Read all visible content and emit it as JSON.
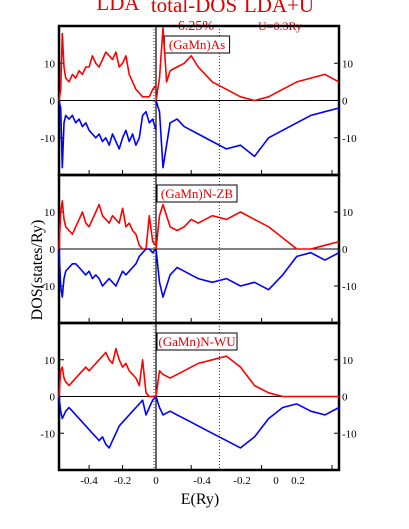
{
  "header": {
    "lda_label": "LDA",
    "center_label": "total-DOS",
    "concentration": "6.25%",
    "ldau_label": "LDA+U",
    "u_value": "U=0.3Ry"
  },
  "axes": {
    "xlabel": "E(Ry)",
    "ylabel": "DOS(states/Ry)"
  },
  "colors": {
    "spin_up": "#ff0000",
    "spin_down": "#0000ff",
    "label_text": "#e00000",
    "axes": "#000000"
  },
  "chart_data": {
    "type": "line",
    "layout": "3 rows x 2 columns (left: LDA, right: LDA+U)",
    "x_left": {
      "range": [
        -0.58,
        0.0
      ],
      "ticks": [
        -0.4,
        -0.2,
        0
      ],
      "tick_labels": [
        "-0.4",
        "-0.2",
        "0"
      ]
    },
    "x_right": {
      "range": [
        0.0,
        0.26
      ],
      "ticks": [
        0.0,
        0.2
      ],
      "tick_labels": [
        "0",
        "0.2"
      ]
    },
    "x_right_lower": {
      "ticks": [
        -0.4,
        -0.2,
        0,
        0.2
      ],
      "tick_labels": [
        "-0.4",
        "-0.2",
        "0",
        "0.2"
      ]
    },
    "ylim": [
      -20,
      20
    ],
    "yticks": [
      10,
      0,
      -10
    ],
    "ytick_labels": [
      "10",
      "0",
      "-10"
    ],
    "fermi_level": 0,
    "panels": [
      {
        "label": "(GaMn)As",
        "lda": {
          "up": {
            "x": [
              -0.58,
              -0.57,
              -0.56,
              -0.55,
              -0.54,
              -0.52,
              -0.5,
              -0.48,
              -0.46,
              -0.44,
              -0.42,
              -0.4,
              -0.38,
              -0.36,
              -0.34,
              -0.32,
              -0.3,
              -0.28,
              -0.26,
              -0.24,
              -0.22,
              -0.2,
              -0.18,
              -0.16,
              -0.14,
              -0.12,
              -0.1,
              -0.08,
              -0.06,
              -0.04,
              -0.02,
              0.0
            ],
            "y": [
              0,
              3,
              18,
              9,
              6,
              5,
              7,
              6,
              8,
              7,
              9,
              9,
              12,
              10,
              9,
              11,
              13,
              12,
              11,
              13,
              9,
              10,
              12,
              7,
              5,
              3,
              2,
              1,
              1,
              1,
              3,
              4
            ]
          },
          "down": {
            "x": [
              -0.58,
              -0.57,
              -0.56,
              -0.55,
              -0.54,
              -0.52,
              -0.5,
              -0.48,
              -0.46,
              -0.44,
              -0.42,
              -0.4,
              -0.38,
              -0.36,
              -0.34,
              -0.32,
              -0.3,
              -0.28,
              -0.26,
              -0.24,
              -0.22,
              -0.2,
              -0.18,
              -0.16,
              -0.14,
              -0.12,
              -0.1,
              -0.08,
              -0.06,
              -0.04,
              -0.02,
              0.0
            ],
            "y": [
              0,
              -2,
              -18,
              -6,
              -4,
              -5,
              -4,
              -6,
              -5,
              -7,
              -6,
              -8,
              -9,
              -10,
              -9,
              -11,
              -10,
              -12,
              -9,
              -11,
              -13,
              -10,
              -8,
              -11,
              -9,
              -12,
              -10,
              -4,
              -3,
              -6,
              -5,
              -8
            ]
          }
        },
        "ldau": {
          "up": {
            "x": [
              0.0,
              0.005,
              0.01,
              0.015,
              0.02,
              0.03,
              0.04,
              0.05,
              0.06,
              0.07,
              0.08,
              0.1,
              0.12,
              0.14,
              0.16,
              0.18,
              0.2,
              0.22,
              0.24,
              0.26
            ],
            "y": [
              0,
              6,
              20,
              5,
              8,
              9,
              10,
              12,
              9,
              7,
              5,
              3,
              1,
              0,
              1,
              3,
              5,
              6,
              7,
              5
            ]
          },
          "down": {
            "x": [
              0.0,
              0.005,
              0.01,
              0.02,
              0.03,
              0.04,
              0.05,
              0.06,
              0.08,
              0.1,
              0.12,
              0.14,
              0.16,
              0.18,
              0.2,
              0.22,
              0.24,
              0.26
            ],
            "y": [
              0,
              -3,
              -18,
              -6,
              -5,
              -7,
              -8,
              -9,
              -11,
              -13,
              -12,
              -15,
              -10,
              -8,
              -6,
              -4,
              -3,
              -2
            ]
          }
        }
      },
      {
        "label": "(GaMn)N-ZB",
        "lda": {
          "up": {
            "x": [
              -0.58,
              -0.57,
              -0.56,
              -0.55,
              -0.54,
              -0.52,
              -0.5,
              -0.48,
              -0.46,
              -0.44,
              -0.42,
              -0.4,
              -0.38,
              -0.36,
              -0.34,
              -0.32,
              -0.3,
              -0.28,
              -0.26,
              -0.24,
              -0.22,
              -0.2,
              -0.18,
              -0.16,
              -0.14,
              -0.12,
              -0.1,
              -0.08,
              -0.06,
              -0.04,
              -0.02,
              0.0
            ],
            "y": [
              0,
              10,
              13,
              8,
              6,
              5,
              4,
              6,
              8,
              10,
              7,
              6,
              8,
              10,
              12,
              9,
              8,
              7,
              9,
              8,
              7,
              11,
              6,
              7,
              5,
              4,
              1,
              0,
              0,
              9,
              2,
              1
            ]
          },
          "down": {
            "x": [
              -0.58,
              -0.57,
              -0.56,
              -0.55,
              -0.54,
              -0.52,
              -0.5,
              -0.48,
              -0.46,
              -0.44,
              -0.42,
              -0.4,
              -0.38,
              -0.36,
              -0.34,
              -0.32,
              -0.3,
              -0.28,
              -0.26,
              -0.24,
              -0.22,
              -0.2,
              -0.18,
              -0.16,
              -0.14,
              -0.12,
              -0.1,
              -0.08,
              -0.06,
              -0.04,
              -0.02,
              0.0
            ],
            "y": [
              0,
              -10,
              -13,
              -8,
              -6,
              -5,
              -4,
              -4,
              -5,
              -6,
              -7,
              -6,
              -8,
              -7,
              -8,
              -10,
              -9,
              -8,
              -9,
              -10,
              -8,
              -6,
              -7,
              -6,
              -5,
              -4,
              -2,
              -1,
              0,
              0,
              -1,
              0
            ]
          }
        },
        "ldau": {
          "up": {
            "x": [
              0.0,
              0.005,
              0.01,
              0.02,
              0.03,
              0.04,
              0.05,
              0.06,
              0.08,
              0.1,
              0.12,
              0.14,
              0.16,
              0.18,
              0.2,
              0.22,
              0.24,
              0.26
            ],
            "y": [
              0,
              9,
              12,
              6,
              5,
              6,
              8,
              7,
              9,
              8,
              10,
              8,
              6,
              3,
              0,
              0,
              1,
              2
            ]
          },
          "down": {
            "x": [
              0.0,
              0.005,
              0.01,
              0.02,
              0.03,
              0.04,
              0.05,
              0.06,
              0.08,
              0.1,
              0.12,
              0.14,
              0.16,
              0.18,
              0.2,
              0.22,
              0.24,
              0.26
            ],
            "y": [
              0,
              -9,
              -13,
              -7,
              -5,
              -6,
              -7,
              -8,
              -9,
              -8,
              -10,
              -9,
              -11,
              -7,
              -2,
              -1,
              -3,
              -1
            ]
          }
        }
      },
      {
        "label": "(GaMn)N-WU",
        "lda": {
          "up": {
            "x": [
              -0.58,
              -0.57,
              -0.56,
              -0.55,
              -0.54,
              -0.52,
              -0.5,
              -0.48,
              -0.46,
              -0.44,
              -0.42,
              -0.4,
              -0.38,
              -0.36,
              -0.34,
              -0.32,
              -0.3,
              -0.28,
              -0.26,
              -0.24,
              -0.22,
              -0.2,
              -0.18,
              -0.16,
              -0.14,
              -0.12,
              -0.1,
              -0.08,
              -0.06,
              -0.04,
              -0.02,
              0.0
            ],
            "y": [
              0,
              7,
              8,
              5,
              4,
              3,
              4,
              5,
              6,
              7,
              8,
              7,
              8,
              9,
              10,
              11,
              12,
              10,
              9,
              13,
              10,
              8,
              9,
              7,
              6,
              5,
              3,
              10,
              1,
              0,
              0,
              0
            ]
          },
          "down": {
            "x": [
              -0.58,
              -0.57,
              -0.56,
              -0.55,
              -0.54,
              -0.52,
              -0.5,
              -0.48,
              -0.46,
              -0.44,
              -0.42,
              -0.4,
              -0.38,
              -0.36,
              -0.34,
              -0.32,
              -0.3,
              -0.28,
              -0.26,
              -0.24,
              -0.22,
              -0.2,
              -0.18,
              -0.16,
              -0.14,
              -0.12,
              -0.1,
              -0.08,
              -0.06,
              -0.04,
              -0.02,
              0.0
            ],
            "y": [
              0,
              -4,
              -6,
              -5,
              -4,
              -3,
              -4,
              -5,
              -6,
              -7,
              -8,
              -9,
              -10,
              -11,
              -12,
              -11,
              -13,
              -14,
              -12,
              -10,
              -8,
              -7,
              -6,
              -5,
              -4,
              -3,
              -2,
              -1,
              -5,
              -3,
              -1,
              0
            ]
          }
        },
        "ldau": {
          "up": {
            "x": [
              0.0,
              0.005,
              0.01,
              0.02,
              0.03,
              0.04,
              0.05,
              0.06,
              0.08,
              0.1,
              0.12,
              0.14,
              0.16,
              0.18,
              0.2,
              0.22,
              0.24,
              0.26
            ],
            "y": [
              0,
              7,
              6,
              5,
              6,
              7,
              8,
              9,
              10,
              11,
              8,
              3,
              1,
              0,
              0,
              0,
              0,
              0
            ]
          },
          "down": {
            "x": [
              0.0,
              0.005,
              0.01,
              0.02,
              0.03,
              0.04,
              0.05,
              0.06,
              0.08,
              0.1,
              0.12,
              0.14,
              0.16,
              0.18,
              0.2,
              0.22,
              0.24,
              0.26
            ],
            "y": [
              0,
              -3,
              -5,
              -4,
              -5,
              -6,
              -7,
              -8,
              -10,
              -12,
              -14,
              -11,
              -6,
              -3,
              -2,
              -4,
              -5,
              -3
            ]
          }
        }
      }
    ]
  }
}
